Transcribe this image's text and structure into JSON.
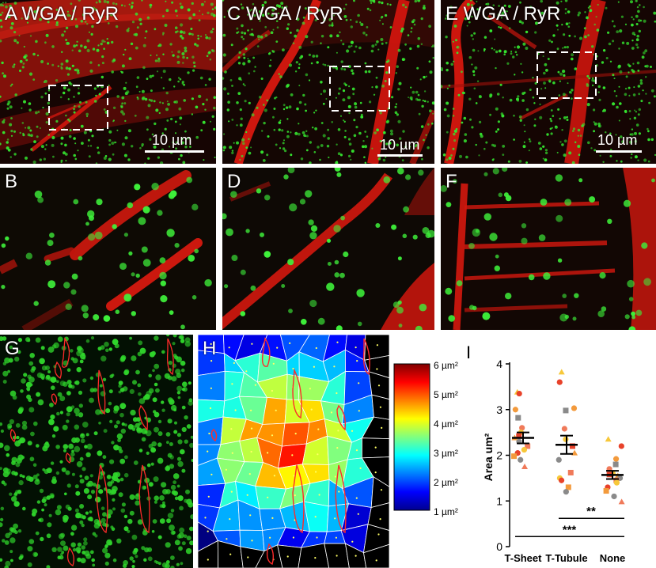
{
  "panels": {
    "a": {
      "label": "A WGA / RyR",
      "scale": "10 µm"
    },
    "b": {
      "label": "B"
    },
    "c": {
      "label": "C WGA / RyR",
      "scale": "10 µm"
    },
    "d": {
      "label": "D"
    },
    "e": {
      "label": "E WGA / RyR",
      "scale": "10 µm"
    },
    "f": {
      "label": "F"
    },
    "g": {
      "label": "G"
    },
    "h": {
      "label": "H"
    },
    "i": {
      "label": "I"
    }
  },
  "colorbar": {
    "ticks": [
      "6 µm²",
      "5 µm²",
      "4 µm²",
      "3 µm²",
      "2 µm²",
      "1 µm²"
    ],
    "range": [
      1,
      6
    ]
  },
  "colors": {
    "wga": "#e8160c",
    "ryr": "#2ee02a",
    "outline": "#ff2a2a"
  },
  "chart_data": {
    "type": "scatter",
    "categories": [
      "T-Sheet",
      "T-Tubule",
      "None"
    ],
    "ylabel": "Area um²",
    "ylim": [
      0,
      4
    ],
    "yticks": [
      "0",
      "1",
      "2",
      "3",
      "4"
    ],
    "means": [
      2.38,
      2.23,
      1.57
    ],
    "sem": [
      0.12,
      0.2,
      0.09
    ],
    "points": [
      [
        3.38,
        3.35,
        3.0,
        2.82,
        2.6,
        2.5,
        2.42,
        2.38,
        2.3,
        2.2,
        2.12,
        2.05,
        1.98,
        1.9,
        1.75
      ],
      [
        3.82,
        3.6,
        3.03,
        2.98,
        2.58,
        2.35,
        2.2,
        2.05,
        1.9,
        1.62,
        1.5,
        1.45,
        1.3,
        1.2
      ],
      [
        2.35,
        2.2,
        1.92,
        1.8,
        1.7,
        1.6,
        1.58,
        1.55,
        1.5,
        1.45,
        1.4,
        1.3,
        1.22,
        1.1,
        0.98
      ]
    ],
    "point_colors": [
      "#f7c83a",
      "#e8422a",
      "#f39a3c",
      "#8a8a8a",
      "#f07a5a"
    ],
    "significance": [
      {
        "pair": [
          "T-Tubule",
          "None"
        ],
        "label": "**"
      },
      {
        "pair": [
          "T-Sheet",
          "None"
        ],
        "label": "***"
      }
    ],
    "grid": false,
    "legend": "none"
  }
}
